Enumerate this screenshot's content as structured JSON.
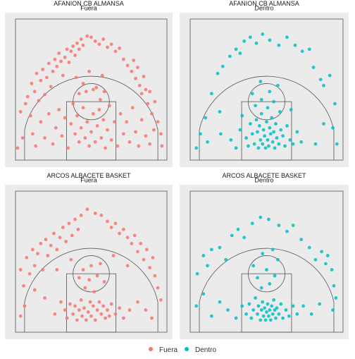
{
  "colors": {
    "fuera": "#F8766D",
    "dentro": "#00BFC4",
    "panel_bg": "#EBEBEB",
    "court_lines": "#555555"
  },
  "legend": {
    "position": "bottom",
    "items": [
      {
        "label": "Fuera",
        "color": "#F8766D"
      },
      {
        "label": "Dentro",
        "color": "#00BFC4"
      }
    ]
  },
  "chart_data": [
    {
      "type": "scatter",
      "title": "AFANION CB ALMANSA",
      "subtitle": "Fuera",
      "series": "Fuera",
      "xlim": [
        -7.5,
        7.5
      ],
      "ylim": [
        0,
        14
      ],
      "points": [
        [
          -7,
          4.8
        ],
        [
          -6.8,
          2.2
        ],
        [
          -6.5,
          5.6
        ],
        [
          -6.3,
          6.3
        ],
        [
          -6.0,
          4.4
        ],
        [
          -5.9,
          7.6
        ],
        [
          -5.6,
          6.8
        ],
        [
          -5.4,
          8.6
        ],
        [
          -5.2,
          5.9
        ],
        [
          -5.0,
          7.9
        ],
        [
          -4.8,
          9.0
        ],
        [
          -4.6,
          6.5
        ],
        [
          -4.4,
          8.2
        ],
        [
          -4.2,
          9.6
        ],
        [
          -4.0,
          7.3
        ],
        [
          -3.8,
          8.8
        ],
        [
          -3.6,
          10.0
        ],
        [
          -3.4,
          9.3
        ],
        [
          -3.2,
          10.6
        ],
        [
          -3.0,
          9.8
        ],
        [
          -2.8,
          8.4
        ],
        [
          -2.6,
          10.2
        ],
        [
          -2.4,
          11.0
        ],
        [
          -2.2,
          9.7
        ],
        [
          -2.0,
          10.8
        ],
        [
          -1.8,
          11.3
        ],
        [
          -1.6,
          10.4
        ],
        [
          -1.4,
          11.6
        ],
        [
          -1.2,
          11.0
        ],
        [
          -1.0,
          12.0
        ],
        [
          -0.8,
          11.4
        ],
        [
          -0.4,
          12.3
        ],
        [
          0.0,
          12.2
        ],
        [
          0.4,
          11.8
        ],
        [
          0.8,
          11.5
        ],
        [
          1.2,
          12.0
        ],
        [
          1.6,
          11.2
        ],
        [
          2.0,
          11.5
        ],
        [
          2.4,
          10.8
        ],
        [
          2.8,
          11.1
        ],
        [
          3.2,
          10.0
        ],
        [
          3.6,
          9.4
        ],
        [
          4.0,
          8.8
        ],
        [
          4.2,
          9.9
        ],
        [
          4.4,
          8.1
        ],
        [
          4.6,
          9.2
        ],
        [
          4.8,
          7.4
        ],
        [
          5.0,
          6.6
        ],
        [
          5.2,
          8.3
        ],
        [
          5.4,
          7.0
        ],
        [
          5.6,
          5.6
        ],
        [
          5.8,
          6.8
        ],
        [
          6.0,
          4.6
        ],
        [
          6.3,
          5.8
        ],
        [
          6.6,
          3.8
        ],
        [
          6.9,
          2.6
        ],
        [
          7.0,
          1.4
        ],
        [
          -7.3,
          1.2
        ],
        [
          -5.8,
          2.6
        ],
        [
          -5.5,
          1.4
        ],
        [
          -5.0,
          3.8
        ],
        [
          -4.6,
          2.2
        ],
        [
          -4.2,
          4.6
        ],
        [
          -3.8,
          1.6
        ],
        [
          -3.5,
          3.2
        ],
        [
          -3.2,
          5.0
        ],
        [
          -2.9,
          2.4
        ],
        [
          -2.6,
          4.2
        ],
        [
          -2.3,
          1.2
        ],
        [
          -2.0,
          3.6
        ],
        [
          -1.8,
          5.6
        ],
        [
          -1.6,
          2.6
        ],
        [
          -1.4,
          4.4
        ],
        [
          -1.2,
          1.8
        ],
        [
          -1.0,
          3.2
        ],
        [
          -0.8,
          5.2
        ],
        [
          -0.6,
          2.2
        ],
        [
          -0.4,
          3.8
        ],
        [
          -0.2,
          1.4
        ],
        [
          0.0,
          2.8
        ],
        [
          0.2,
          4.6
        ],
        [
          0.4,
          1.8
        ],
        [
          0.6,
          3.4
        ],
        [
          0.8,
          5.0
        ],
        [
          1.0,
          2.2
        ],
        [
          1.2,
          4.0
        ],
        [
          1.4,
          1.2
        ],
        [
          1.6,
          3.0
        ],
        [
          1.8,
          5.4
        ],
        [
          2.0,
          2.0
        ],
        [
          2.3,
          3.8
        ],
        [
          2.6,
          1.4
        ],
        [
          2.9,
          4.6
        ],
        [
          3.2,
          2.6
        ],
        [
          3.5,
          3.8
        ],
        [
          3.8,
          1.8
        ],
        [
          4.1,
          5.2
        ],
        [
          4.4,
          2.8
        ],
        [
          4.7,
          1.4
        ],
        [
          5.0,
          4.0
        ],
        [
          5.4,
          2.4
        ],
        [
          5.8,
          1.6
        ],
        [
          6.2,
          3.0
        ],
        [
          -1.5,
          8.2
        ],
        [
          -0.8,
          7.6
        ],
        [
          -0.2,
          8.8
        ],
        [
          0.5,
          7.2
        ],
        [
          1.1,
          8.4
        ],
        [
          -1.2,
          6.6
        ],
        [
          0.9,
          6.0
        ],
        [
          -0.5,
          6.8
        ],
        [
          0.2,
          7.0
        ],
        [
          1.3,
          6.8
        ]
      ]
    },
    {
      "type": "scatter",
      "title": "AFANION CB ALMANSA",
      "subtitle": "Dentro",
      "series": "Dentro",
      "xlim": [
        -7.5,
        7.5
      ],
      "ylim": [
        0,
        14
      ],
      "points": [
        [
          -6.9,
          1.2
        ],
        [
          -6.5,
          2.6
        ],
        [
          -6.0,
          4.2
        ],
        [
          -5.4,
          6.6
        ],
        [
          -4.8,
          8.6
        ],
        [
          -4.3,
          9.3
        ],
        [
          -3.6,
          10.3
        ],
        [
          -3.0,
          11.0
        ],
        [
          -2.6,
          10.6
        ],
        [
          -2.2,
          11.8
        ],
        [
          -1.6,
          12.2
        ],
        [
          -1.0,
          11.6
        ],
        [
          -0.4,
          12.5
        ],
        [
          0.3,
          11.9
        ],
        [
          1.2,
          11.4
        ],
        [
          2.0,
          12.2
        ],
        [
          2.8,
          11.4
        ],
        [
          3.5,
          10.8
        ],
        [
          4.2,
          11.0
        ],
        [
          4.6,
          9.2
        ],
        [
          5.3,
          8.0
        ],
        [
          5.6,
          7.4
        ],
        [
          6.2,
          8.4
        ],
        [
          6.7,
          5.6
        ],
        [
          6.5,
          3.2
        ],
        [
          6.9,
          1.6
        ],
        [
          -5.8,
          1.8
        ],
        [
          -4.5,
          2.6
        ],
        [
          -3.5,
          2.0
        ],
        [
          -3.0,
          1.2
        ],
        [
          -2.6,
          3.0
        ],
        [
          -2.0,
          2.2
        ],
        [
          -1.8,
          1.4
        ],
        [
          -1.6,
          3.6
        ],
        [
          -1.4,
          2.6
        ],
        [
          -1.2,
          1.6
        ],
        [
          -1.0,
          4.0
        ],
        [
          -0.9,
          2.8
        ],
        [
          -0.8,
          1.2
        ],
        [
          -0.7,
          3.4
        ],
        [
          -0.6,
          2.0
        ],
        [
          -0.5,
          4.6
        ],
        [
          -0.4,
          1.6
        ],
        [
          -0.3,
          3.0
        ],
        [
          -0.2,
          2.4
        ],
        [
          -0.1,
          1.2
        ],
        [
          0.0,
          3.8
        ],
        [
          0.1,
          2.0
        ],
        [
          0.2,
          1.4
        ],
        [
          0.3,
          3.2
        ],
        [
          0.4,
          2.6
        ],
        [
          0.5,
          4.2
        ],
        [
          0.6,
          1.8
        ],
        [
          0.7,
          2.8
        ],
        [
          0.8,
          1.2
        ],
        [
          0.9,
          3.6
        ],
        [
          1.0,
          2.2
        ],
        [
          1.2,
          1.6
        ],
        [
          1.4,
          3.0
        ],
        [
          1.6,
          2.4
        ],
        [
          1.8,
          1.4
        ],
        [
          2.0,
          3.4
        ],
        [
          2.3,
          2.0
        ],
        [
          2.6,
          1.6
        ],
        [
          3.0,
          2.8
        ],
        [
          3.4,
          1.8
        ],
        [
          -1.1,
          5.4
        ],
        [
          -0.5,
          6.0
        ],
        [
          0.1,
          5.2
        ],
        [
          0.7,
          5.8
        ],
        [
          1.3,
          4.8
        ],
        [
          -1.4,
          6.6
        ],
        [
          0.3,
          6.8
        ],
        [
          1.1,
          7.4
        ],
        [
          -0.6,
          7.8
        ],
        [
          2.4,
          5.0
        ],
        [
          -2.4,
          4.4
        ],
        [
          5.6,
          3.6
        ],
        [
          4.8,
          1.6
        ],
        [
          -4.6,
          4.8
        ]
      ]
    },
    {
      "type": "scatter",
      "title": "ARCOS ALBACETE BASKET",
      "subtitle": "Fuera",
      "series": "Fuera",
      "xlim": [
        -7.5,
        7.5
      ],
      "ylim": [
        0,
        14
      ],
      "points": [
        [
          -7.0,
          6.2
        ],
        [
          -6.7,
          4.6
        ],
        [
          -6.4,
          7.4
        ],
        [
          -6.1,
          5.8
        ],
        [
          -5.8,
          8.2
        ],
        [
          -5.6,
          6.6
        ],
        [
          -5.3,
          7.8
        ],
        [
          -5.0,
          8.8
        ],
        [
          -4.8,
          6.2
        ],
        [
          -4.5,
          9.2
        ],
        [
          -4.3,
          7.6
        ],
        [
          -4.0,
          8.6
        ],
        [
          -3.7,
          9.8
        ],
        [
          -3.4,
          8.2
        ],
        [
          -3.1,
          9.4
        ],
        [
          -2.8,
          10.4
        ],
        [
          -2.5,
          9.0
        ],
        [
          -2.2,
          10.8
        ],
        [
          -1.9,
          9.6
        ],
        [
          -1.6,
          11.2
        ],
        [
          -1.3,
          10.2
        ],
        [
          -1.0,
          11.6
        ],
        [
          -0.4,
          12.2
        ],
        [
          0.4,
          11.8
        ],
        [
          1.0,
          11.6
        ],
        [
          1.6,
          11.0
        ],
        [
          2.0,
          10.4
        ],
        [
          2.4,
          10.8
        ],
        [
          2.8,
          9.8
        ],
        [
          3.2,
          10.2
        ],
        [
          3.6,
          9.4
        ],
        [
          4.0,
          8.8
        ],
        [
          4.3,
          9.6
        ],
        [
          4.6,
          8.0
        ],
        [
          4.9,
          8.8
        ],
        [
          5.2,
          7.2
        ],
        [
          5.5,
          8.2
        ],
        [
          5.8,
          6.4
        ],
        [
          6.1,
          7.4
        ],
        [
          6.3,
          5.6
        ],
        [
          6.6,
          4.4
        ],
        [
          6.9,
          3.2
        ],
        [
          -7.0,
          1.6
        ],
        [
          -6.6,
          2.6
        ],
        [
          -5.6,
          4.2
        ],
        [
          -4.6,
          3.4
        ],
        [
          -3.6,
          1.8
        ],
        [
          -3.0,
          3.0
        ],
        [
          -2.6,
          2.2
        ],
        [
          -2.4,
          1.4
        ],
        [
          -2.1,
          2.8
        ],
        [
          -1.8,
          1.8
        ],
        [
          -1.6,
          2.6
        ],
        [
          -1.4,
          1.2
        ],
        [
          -1.2,
          2.2
        ],
        [
          -1.0,
          3.2
        ],
        [
          -0.9,
          1.6
        ],
        [
          -0.7,
          2.4
        ],
        [
          -0.5,
          1.2
        ],
        [
          -0.3,
          2.0
        ],
        [
          -0.1,
          3.0
        ],
        [
          0.0,
          1.6
        ],
        [
          0.2,
          2.6
        ],
        [
          0.4,
          1.2
        ],
        [
          0.6,
          2.2
        ],
        [
          0.8,
          3.0
        ],
        [
          1.0,
          1.8
        ],
        [
          1.2,
          2.6
        ],
        [
          1.4,
          1.4
        ],
        [
          1.6,
          2.2
        ],
        [
          1.8,
          1.6
        ],
        [
          2.0,
          2.8
        ],
        [
          2.4,
          1.8
        ],
        [
          2.8,
          2.4
        ],
        [
          3.2,
          1.4
        ],
        [
          3.8,
          2.2
        ],
        [
          4.6,
          3.0
        ],
        [
          5.4,
          2.2
        ],
        [
          6.0,
          1.4
        ],
        [
          -0.6,
          4.4
        ],
        [
          0.3,
          4.0
        ],
        [
          -0.2,
          5.2
        ],
        [
          0.6,
          5.6
        ],
        [
          -0.8,
          6.2
        ],
        [
          0.9,
          6.8
        ],
        [
          1.3,
          5.0
        ],
        [
          -1.2,
          5.4
        ],
        [
          0.0,
          6.6
        ],
        [
          -3.4,
          6.2
        ],
        [
          3.6,
          6.6
        ],
        [
          -2.0,
          7.2
        ],
        [
          2.2,
          7.6
        ]
      ]
    },
    {
      "type": "scatter",
      "title": "ARCOS ALBACETE BASKET",
      "subtitle": "Dentro",
      "series": "Dentro",
      "xlim": [
        -7.5,
        7.5
      ],
      "ylim": [
        0,
        14
      ],
      "points": [
        [
          -6.8,
          5.8
        ],
        [
          -6.2,
          7.6
        ],
        [
          -5.8,
          6.6
        ],
        [
          -5.4,
          8.2
        ],
        [
          -4.6,
          8.4
        ],
        [
          -4.0,
          7.2
        ],
        [
          -3.4,
          9.6
        ],
        [
          -2.8,
          10.2
        ],
        [
          -2.2,
          9.4
        ],
        [
          -1.4,
          10.8
        ],
        [
          -0.6,
          11.4
        ],
        [
          0.2,
          11.2
        ],
        [
          1.2,
          10.6
        ],
        [
          2.0,
          10.0
        ],
        [
          2.6,
          10.6
        ],
        [
          3.4,
          9.2
        ],
        [
          4.2,
          8.4
        ],
        [
          4.8,
          7.2
        ],
        [
          5.4,
          8.0
        ],
        [
          5.8,
          6.8
        ],
        [
          6.0,
          7.6
        ],
        [
          6.4,
          6.2
        ],
        [
          6.6,
          4.6
        ],
        [
          6.8,
          3.4
        ],
        [
          6.5,
          2.2
        ],
        [
          -6.9,
          2.6
        ],
        [
          -6.2,
          3.8
        ],
        [
          -5.4,
          1.6
        ],
        [
          -4.6,
          3.0
        ],
        [
          -3.8,
          2.2
        ],
        [
          -3.0,
          1.4
        ],
        [
          -2.4,
          2.6
        ],
        [
          -2.0,
          1.8
        ],
        [
          -1.7,
          2.8
        ],
        [
          -1.5,
          1.4
        ],
        [
          -1.3,
          2.2
        ],
        [
          -1.1,
          3.4
        ],
        [
          -0.9,
          1.8
        ],
        [
          -0.8,
          2.6
        ],
        [
          -0.6,
          1.2
        ],
        [
          -0.5,
          2.2
        ],
        [
          -0.4,
          3.0
        ],
        [
          -0.3,
          1.6
        ],
        [
          -0.2,
          2.4
        ],
        [
          -0.1,
          1.2
        ],
        [
          0.0,
          2.0
        ],
        [
          0.1,
          2.8
        ],
        [
          0.2,
          1.6
        ],
        [
          0.3,
          2.2
        ],
        [
          0.4,
          1.2
        ],
        [
          0.5,
          2.6
        ],
        [
          0.6,
          1.8
        ],
        [
          0.7,
          3.2
        ],
        [
          0.8,
          2.2
        ],
        [
          0.9,
          1.4
        ],
        [
          1.0,
          2.4
        ],
        [
          1.2,
          1.8
        ],
        [
          1.4,
          2.8
        ],
        [
          1.6,
          1.4
        ],
        [
          1.9,
          2.2
        ],
        [
          2.2,
          1.6
        ],
        [
          2.6,
          2.6
        ],
        [
          3.0,
          1.8
        ],
        [
          3.6,
          2.6
        ],
        [
          4.4,
          1.8
        ],
        [
          5.2,
          2.8
        ],
        [
          -0.5,
          4.4
        ],
        [
          0.3,
          4.8
        ],
        [
          -0.9,
          5.4
        ],
        [
          0.8,
          5.6
        ],
        [
          0.0,
          6.2
        ],
        [
          -1.3,
          6.6
        ],
        [
          1.1,
          7.2
        ],
        [
          -0.4,
          7.8
        ],
        [
          0.6,
          8.2
        ]
      ]
    }
  ]
}
